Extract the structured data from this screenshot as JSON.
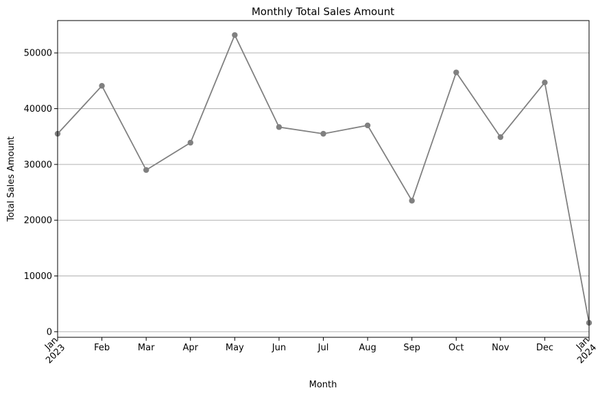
{
  "chart_data": {
    "type": "line",
    "title": "Monthly Total Sales Amount",
    "xlabel": "Month",
    "ylabel": "Total Sales Amount",
    "x": [
      "2023-01",
      "2023-02",
      "2023-03",
      "2023-04",
      "2023-05",
      "2023-06",
      "2023-07",
      "2023-08",
      "2023-09",
      "2023-10",
      "2023-11",
      "2023-12",
      "2024-01"
    ],
    "x_tick_labels": [
      [
        "Jan",
        "2023"
      ],
      [
        "Feb"
      ],
      [
        "Mar"
      ],
      [
        "Apr"
      ],
      [
        "May"
      ],
      [
        "Jun"
      ],
      [
        "Jul"
      ],
      [
        "Aug"
      ],
      [
        "Sep"
      ],
      [
        "Oct"
      ],
      [
        "Nov"
      ],
      [
        "Dec"
      ],
      [
        "Jan",
        "2024"
      ]
    ],
    "y_ticks": [
      0,
      10000,
      20000,
      30000,
      40000,
      50000
    ],
    "ylim": [
      -1000,
      55800
    ],
    "series": [
      {
        "values": [
          35500,
          44100,
          29000,
          33900,
          53200,
          36700,
          35500,
          37000,
          23500,
          46500,
          34900,
          44700,
          1600
        ]
      }
    ],
    "grid": "y-axis horizontal lines",
    "legend": "none",
    "colors": {
      "line": "#808080",
      "grid": "#b0b0b0",
      "axis": "#000000"
    }
  }
}
